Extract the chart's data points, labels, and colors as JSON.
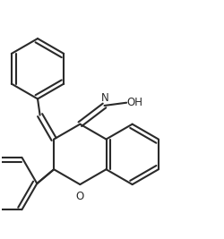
{
  "background_color": "#ffffff",
  "line_color": "#2a2a2a",
  "line_width": 1.5,
  "text_color": "#2a2a2a",
  "label_N": "N",
  "label_OH": "OH",
  "label_O": "O",
  "fig_width": 2.5,
  "fig_height": 2.67,
  "dpi": 100
}
